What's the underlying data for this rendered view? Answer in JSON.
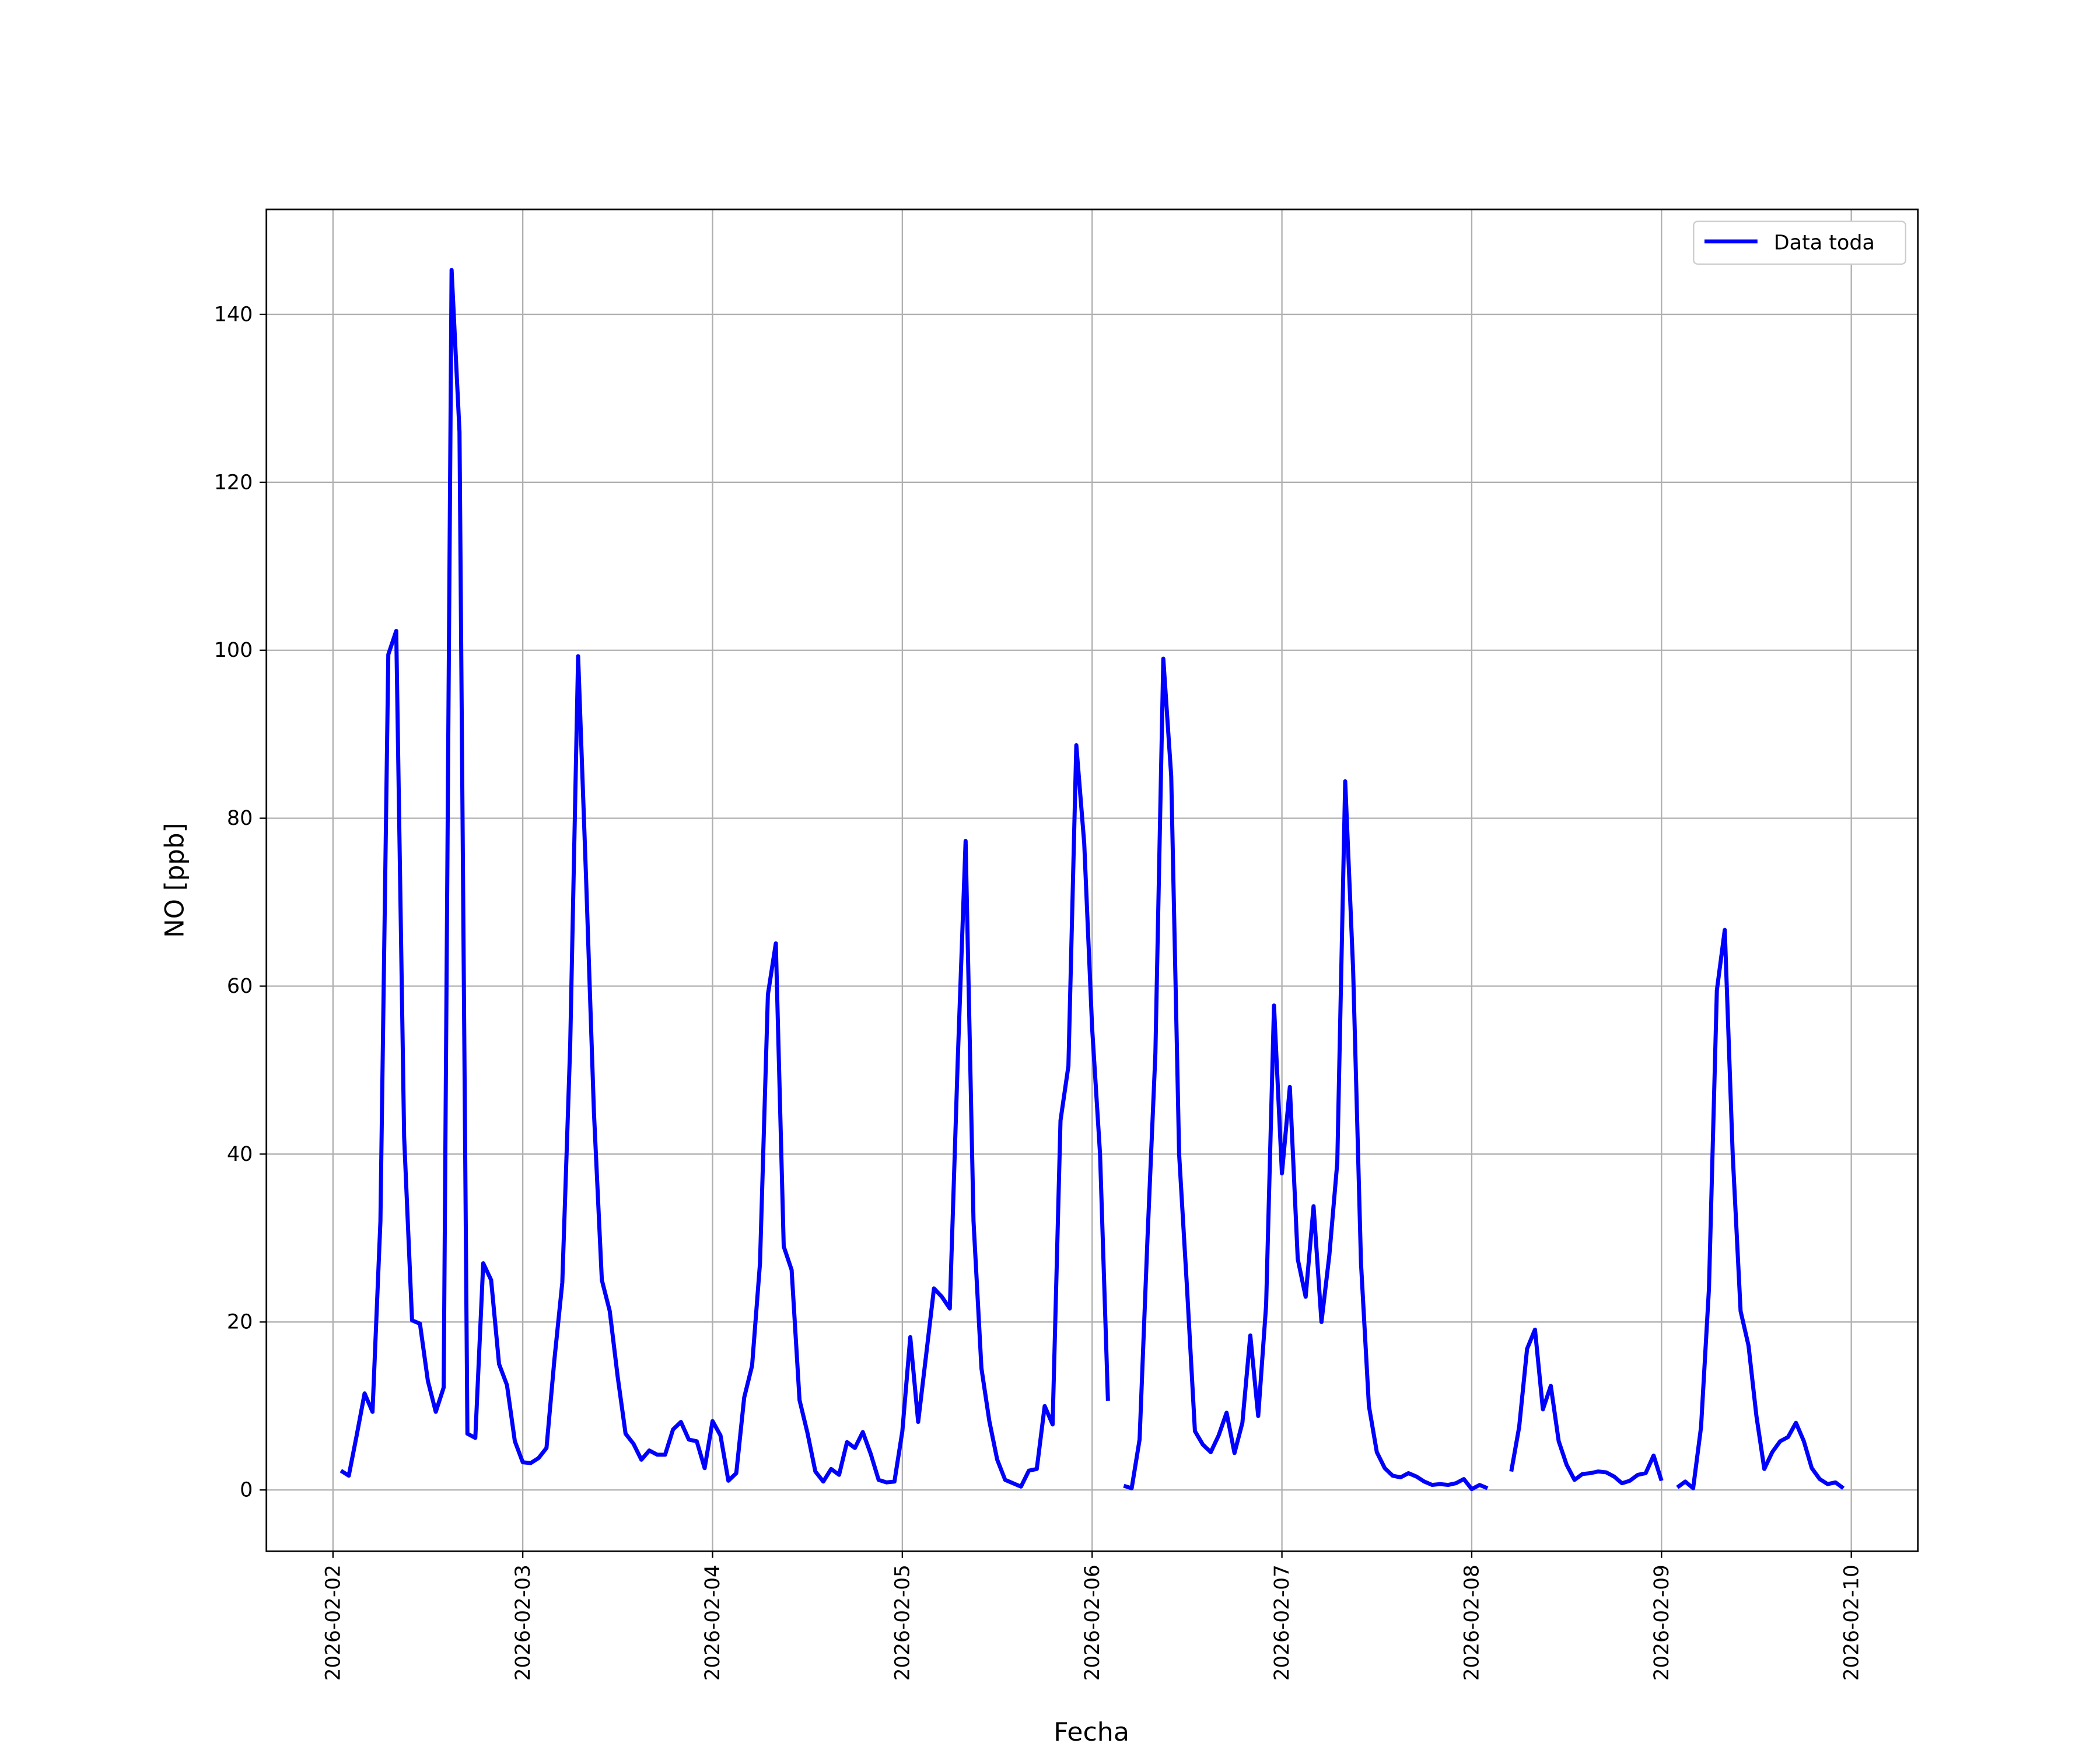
{
  "chart_data": {
    "type": "line",
    "xlabel": "Fecha",
    "ylabel": "NO [ppb]",
    "legend": "upper right",
    "grid": true,
    "xlim": [
      "2026-02-01 15:35",
      "2026-02-10 08:25"
    ],
    "xticks": [
      "2026-02-02",
      "2026-02-03",
      "2026-02-04",
      "2026-02-05",
      "2026-02-06",
      "2026-02-07",
      "2026-02-08",
      "2026-02-09",
      "2026-02-10"
    ],
    "ylim": [
      -7.3,
      152.5
    ],
    "yticks": [
      0,
      20,
      40,
      60,
      80,
      100,
      120,
      140
    ],
    "x": [
      "2026-02-02 01:00",
      "2026-02-02 02:00",
      "2026-02-02 03:00",
      "2026-02-02 04:00",
      "2026-02-02 05:00",
      "2026-02-02 06:00",
      "2026-02-02 07:00",
      "2026-02-02 08:00",
      "2026-02-02 09:00",
      "2026-02-02 10:00",
      "2026-02-02 11:00",
      "2026-02-02 12:00",
      "2026-02-02 13:00",
      "2026-02-02 14:00",
      "2026-02-02 15:00",
      "2026-02-02 16:00",
      "2026-02-02 17:00",
      "2026-02-02 18:00",
      "2026-02-02 19:00",
      "2026-02-02 20:00",
      "2026-02-02 21:00",
      "2026-02-02 22:00",
      "2026-02-02 23:00",
      "2026-02-03 00:00",
      "2026-02-03 01:00",
      "2026-02-03 02:00",
      "2026-02-03 03:00",
      "2026-02-03 04:00",
      "2026-02-03 05:00",
      "2026-02-03 06:00",
      "2026-02-03 07:00",
      "2026-02-03 08:00",
      "2026-02-03 09:00",
      "2026-02-03 10:00",
      "2026-02-03 11:00",
      "2026-02-03 12:00",
      "2026-02-03 13:00",
      "2026-02-03 14:00",
      "2026-02-03 15:00",
      "2026-02-03 16:00",
      "2026-02-03 17:00",
      "2026-02-03 18:00",
      "2026-02-03 19:00",
      "2026-02-03 20:00",
      "2026-02-03 21:00",
      "2026-02-03 22:00",
      "2026-02-03 23:00",
      "2026-02-04 00:00",
      "2026-02-04 01:00",
      "2026-02-04 02:00",
      "2026-02-04 03:00",
      "2026-02-04 04:00",
      "2026-02-04 05:00",
      "2026-02-04 06:00",
      "2026-02-04 07:00",
      "2026-02-04 08:00",
      "2026-02-04 09:00",
      "2026-02-04 10:00",
      "2026-02-04 11:00",
      "2026-02-04 12:00",
      "2026-02-04 13:00",
      "2026-02-04 14:00",
      "2026-02-04 15:00",
      "2026-02-04 16:00",
      "2026-02-04 17:00",
      "2026-02-04 18:00",
      "2026-02-04 19:00",
      "2026-02-04 20:00",
      "2026-02-04 21:00",
      "2026-02-04 22:00",
      "2026-02-04 23:00",
      "2026-02-05 00:00",
      "2026-02-05 01:00",
      "2026-02-05 02:00",
      "2026-02-05 03:00",
      "2026-02-05 04:00",
      "2026-02-05 05:00",
      "2026-02-05 06:00",
      "2026-02-05 07:00",
      "2026-02-05 08:00",
      "2026-02-05 09:00",
      "2026-02-05 10:00",
      "2026-02-05 11:00",
      "2026-02-05 12:00",
      "2026-02-05 13:00",
      "2026-02-05 14:00",
      "2026-02-05 15:00",
      "2026-02-05 16:00",
      "2026-02-05 17:00",
      "2026-02-05 18:00",
      "2026-02-05 19:00",
      "2026-02-05 20:00",
      "2026-02-05 21:00",
      "2026-02-05 22:00",
      "2026-02-05 23:00",
      "2026-02-06 00:00",
      "2026-02-06 01:00",
      "2026-02-06 02:00",
      "2026-02-06 03:00",
      "2026-02-06 04:00",
      "2026-02-06 05:00",
      "2026-02-06 06:00",
      "2026-02-06 07:00",
      "2026-02-06 08:00",
      "2026-02-06 09:00",
      "2026-02-06 10:00",
      "2026-02-06 11:00",
      "2026-02-06 12:00",
      "2026-02-06 13:00",
      "2026-02-06 14:00",
      "2026-02-06 15:00",
      "2026-02-06 16:00",
      "2026-02-06 17:00",
      "2026-02-06 18:00",
      "2026-02-06 19:00",
      "2026-02-06 20:00",
      "2026-02-06 21:00",
      "2026-02-06 22:00",
      "2026-02-06 23:00",
      "2026-02-07 00:00",
      "2026-02-07 01:00",
      "2026-02-07 02:00",
      "2026-02-07 03:00",
      "2026-02-07 04:00",
      "2026-02-07 05:00",
      "2026-02-07 06:00",
      "2026-02-07 07:00",
      "2026-02-07 08:00",
      "2026-02-07 09:00",
      "2026-02-07 10:00",
      "2026-02-07 11:00",
      "2026-02-07 12:00",
      "2026-02-07 13:00",
      "2026-02-07 14:00",
      "2026-02-07 15:00",
      "2026-02-07 16:00",
      "2026-02-07 17:00",
      "2026-02-07 18:00",
      "2026-02-07 19:00",
      "2026-02-07 20:00",
      "2026-02-07 21:00",
      "2026-02-07 22:00",
      "2026-02-07 23:00",
      "2026-02-08 00:00",
      "2026-02-08 01:00",
      "2026-02-08 02:00",
      "2026-02-08 03:00",
      "2026-02-08 04:00",
      "2026-02-08 05:00",
      "2026-02-08 06:00",
      "2026-02-08 07:00",
      "2026-02-08 08:00",
      "2026-02-08 09:00",
      "2026-02-08 10:00",
      "2026-02-08 11:00",
      "2026-02-08 12:00",
      "2026-02-08 13:00",
      "2026-02-08 14:00",
      "2026-02-08 15:00",
      "2026-02-08 16:00",
      "2026-02-08 17:00",
      "2026-02-08 18:00",
      "2026-02-08 19:00",
      "2026-02-08 20:00",
      "2026-02-08 21:00",
      "2026-02-08 22:00",
      "2026-02-08 23:00",
      "2026-02-09 00:00",
      "2026-02-09 01:00",
      "2026-02-09 02:00",
      "2026-02-09 03:00",
      "2026-02-09 04:00",
      "2026-02-09 05:00",
      "2026-02-09 06:00",
      "2026-02-09 07:00",
      "2026-02-09 08:00",
      "2026-02-09 09:00",
      "2026-02-09 10:00",
      "2026-02-09 11:00",
      "2026-02-09 12:00",
      "2026-02-09 13:00",
      "2026-02-09 14:00",
      "2026-02-09 15:00",
      "2026-02-09 16:00",
      "2026-02-09 17:00",
      "2026-02-09 18:00",
      "2026-02-09 19:00",
      "2026-02-09 20:00",
      "2026-02-09 21:00",
      "2026-02-09 22:00",
      "2026-02-09 23:00"
    ],
    "series": [
      {
        "name": "Data toda",
        "color": "#0000ff",
        "values": [
          2.3,
          1.7,
          6.5,
          11.5,
          9.3,
          32,
          99.5,
          102.3,
          42,
          20.2,
          19.8,
          13,
          9.3,
          12.2,
          145.3,
          126,
          6.7,
          6.2,
          27,
          25,
          15,
          12.5,
          5.8,
          3.3,
          3.2,
          3.8,
          5,
          15.5,
          24.7,
          53,
          99.3,
          73,
          45,
          25,
          21.3,
          13.5,
          6.7,
          5.5,
          3.6,
          4.7,
          4.2,
          4.2,
          7.2,
          8.1,
          6,
          5.8,
          2.6,
          8.2,
          6.5,
          1.1,
          2,
          11,
          14.8,
          27,
          59,
          65.1,
          29,
          26.2,
          10.7,
          6.8,
          2.2,
          1,
          2.5,
          1.8,
          5.7,
          5,
          6.9,
          4.3,
          1.2,
          0.9,
          1,
          7,
          18.2,
          8.1,
          16,
          24,
          23,
          21.6,
          51,
          77.3,
          32,
          14.5,
          8.2,
          3.6,
          1.2,
          0.8,
          0.4,
          2.3,
          2.5,
          10,
          7.8,
          44,
          50.5,
          88.7,
          77,
          55,
          40,
          10.6,
          null,
          0.5,
          0.2,
          6,
          30,
          52,
          99,
          85,
          40,
          24,
          7,
          5.4,
          4.5,
          6.5,
          9.2,
          4.4,
          8,
          18.4,
          8.8,
          22,
          57.7,
          37.7,
          48,
          27.5,
          23,
          33.8,
          20,
          28,
          39,
          84.4,
          62,
          27,
          10,
          4.5,
          2.6,
          1.7,
          1.5,
          2,
          1.6,
          1,
          0.6,
          0.7,
          0.6,
          0.8,
          1.3,
          0.1,
          0.6,
          0.2,
          null,
          null,
          2.2,
          7.5,
          16.8,
          19.1,
          9.6,
          12.4,
          5.8,
          3,
          1.2,
          1.9,
          2,
          2.2,
          2.1,
          1.6,
          0.8,
          1.1,
          1.8,
          2,
          4.1,
          1.1,
          null,
          0.3,
          1,
          0.2,
          7.5,
          24,
          59.5,
          66.7,
          40,
          21.3,
          17.2,
          8.8,
          2.5,
          4.5,
          5.8,
          6.3,
          8,
          5.8,
          2.6,
          1.3,
          0.7,
          0.9,
          0.2
        ]
      }
    ]
  }
}
